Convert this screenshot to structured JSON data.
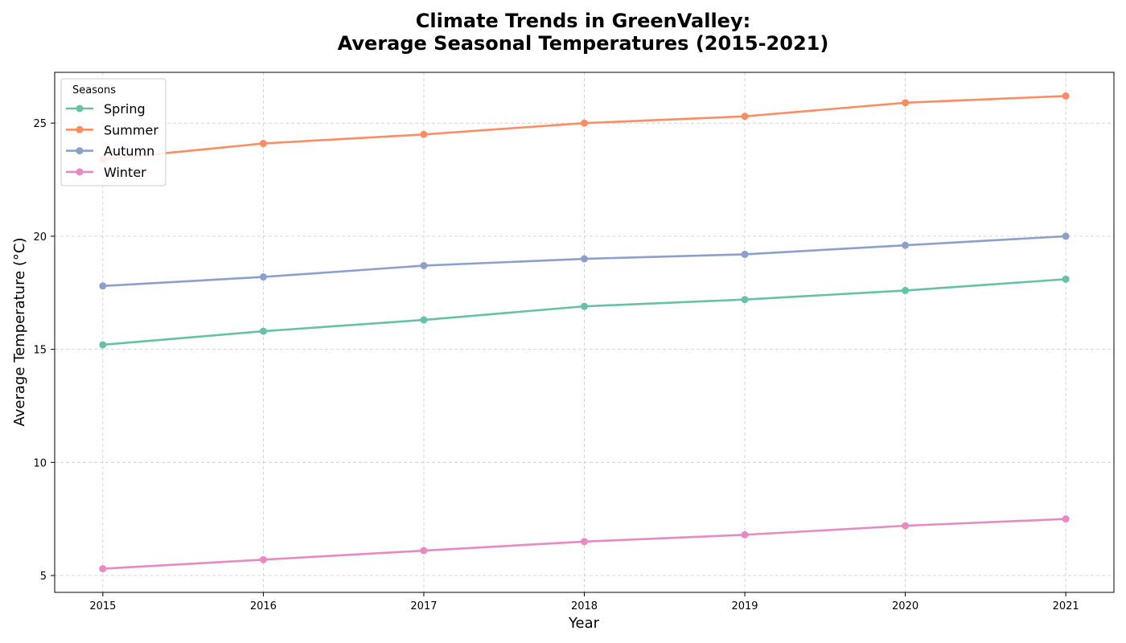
{
  "chart_data": {
    "type": "line",
    "title_lines": [
      "Climate Trends in GreenValley:",
      "Average Seasonal Temperatures (2015-2021)"
    ],
    "xlabel": "Year",
    "ylabel": "Average Temperature (°C)",
    "x": [
      2015,
      2016,
      2017,
      2018,
      2019,
      2020,
      2021
    ],
    "x_tick_labels": [
      "2015",
      "2016",
      "2017",
      "2018",
      "2019",
      "2020",
      "2021"
    ],
    "xlim": [
      2014.7,
      2021.3
    ],
    "y_ticks": [
      5,
      10,
      15,
      20,
      25
    ],
    "y_tick_labels": [
      "5",
      "10",
      "15",
      "20",
      "25"
    ],
    "ylim": [
      4.255,
      27.245
    ],
    "grid": true,
    "legend": {
      "title": "Seasons",
      "placement": "upper-left"
    },
    "series": [
      {
        "name": "Spring",
        "color": "#66c2a5",
        "values": [
          15.2,
          15.8,
          16.3,
          16.9,
          17.2,
          17.6,
          18.1
        ]
      },
      {
        "name": "Summer",
        "color": "#fc8d62",
        "values": [
          23.4,
          24.1,
          24.5,
          25.0,
          25.3,
          25.9,
          26.2
        ]
      },
      {
        "name": "Autumn",
        "color": "#8da0cb",
        "values": [
          17.8,
          18.2,
          18.7,
          19.0,
          19.2,
          19.6,
          20.0
        ]
      },
      {
        "name": "Winter",
        "color": "#e78ac3",
        "values": [
          5.3,
          5.7,
          6.1,
          6.5,
          6.8,
          7.2,
          7.5
        ]
      }
    ]
  }
}
